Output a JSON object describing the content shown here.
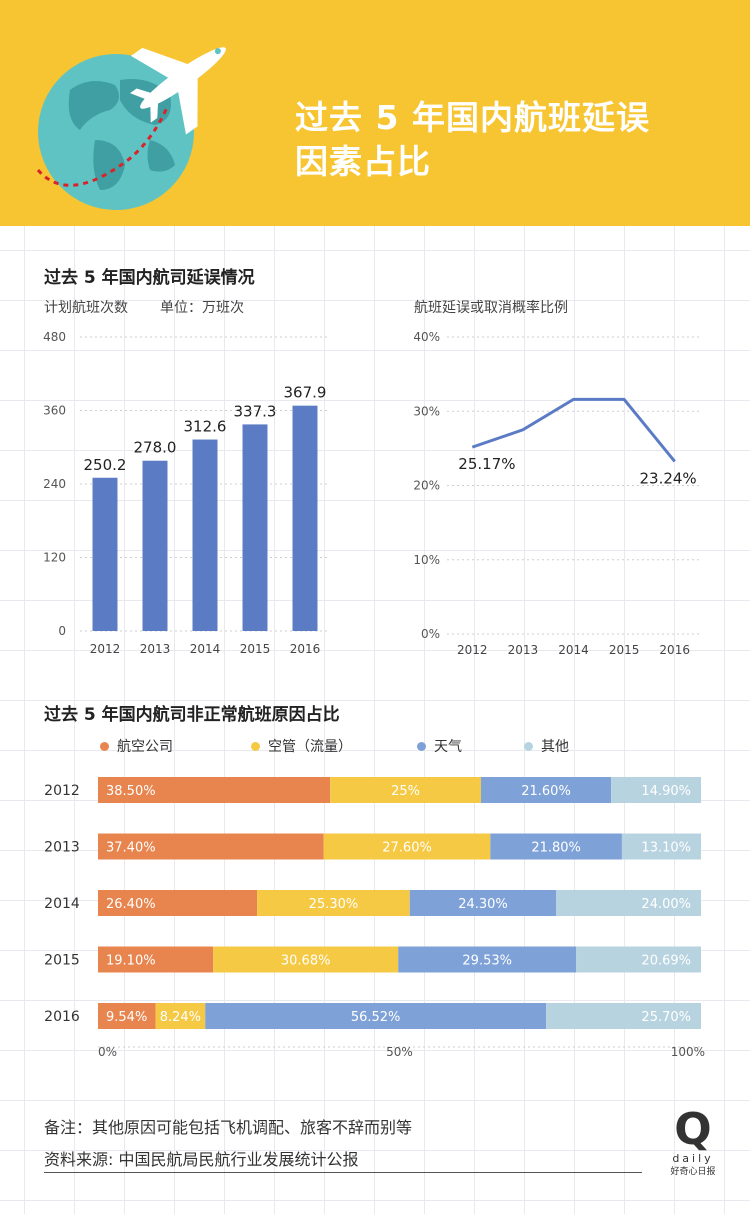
{
  "header": {
    "title_line1": "过去 5 年国内航班延误",
    "title_line2": "因素占比"
  },
  "section1": {
    "title": "过去 5 年国内航司延误情况"
  },
  "section2": {
    "title": "过去 5 年国内航司非正常航班原因占比"
  },
  "notes": {
    "note": "备注：其他原因可能包括飞机调配、旅客不辞而别等",
    "source": "资料来源: 中国民航局民航行业发展统计公报"
  },
  "logo": {
    "letter": "Q",
    "word": "daily",
    "caption": "好奇心日报"
  },
  "colors": {
    "bar": "#5b7cc4",
    "line": "#5b7cc4",
    "airline": "#e8844e",
    "atc": "#f6c944",
    "weather": "#7ea2d8",
    "other": "#b8d3e0",
    "header": "#f7c531"
  },
  "chart_data": [
    {
      "type": "bar",
      "title": "",
      "ylabel": "计划航班次数",
      "unit": "单位：万班次",
      "categories": [
        "2012",
        "2013",
        "2014",
        "2015",
        "2016"
      ],
      "values": [
        250.2,
        278.0,
        312.6,
        337.3,
        367.9
      ],
      "value_labels": [
        "250.2",
        "278.0",
        "312.6",
        "337.3",
        "367.9"
      ],
      "ylim": [
        0,
        480
      ],
      "yticks": [
        "0",
        "120",
        "240",
        "360",
        "480"
      ],
      "grid": true
    },
    {
      "type": "line",
      "ylabel": "航班延误或取消概率比例",
      "categories": [
        "2012",
        "2013",
        "2014",
        "2015",
        "2016"
      ],
      "values": [
        25.17,
        27.5,
        31.6,
        31.6,
        23.24
      ],
      "annotations": [
        {
          "category": "2012",
          "text": "25.17%"
        },
        {
          "category": "2016",
          "text": "23.24%"
        }
      ],
      "ylim": [
        0,
        40
      ],
      "yticks": [
        "0%",
        "10%",
        "20%",
        "30%",
        "40%"
      ],
      "grid": true
    },
    {
      "type": "bar",
      "orientation": "horizontal-stacked-100",
      "categories": [
        "2012",
        "2013",
        "2014",
        "2015",
        "2016"
      ],
      "series": [
        {
          "name": "航空公司",
          "values": [
            38.5,
            37.4,
            26.4,
            19.1,
            9.54
          ],
          "labels": [
            "38.50%",
            "37.40%",
            "26.40%",
            "19.10%",
            "9.54%"
          ]
        },
        {
          "name": "空管（流量）",
          "values": [
            25,
            27.6,
            25.3,
            30.68,
            8.24
          ],
          "labels": [
            "25%",
            "27.60%",
            "25.30%",
            "30.68%",
            "8.24%"
          ]
        },
        {
          "name": "天气",
          "values": [
            21.6,
            21.8,
            24.3,
            29.53,
            56.52
          ],
          "labels": [
            "21.60%",
            "21.80%",
            "24.30%",
            "29.53%",
            "56.52%"
          ]
        },
        {
          "name": "其他",
          "values": [
            14.9,
            13.1,
            24.0,
            20.69,
            25.7
          ],
          "labels": [
            "14.90%",
            "13.10%",
            "24.00%",
            "20.69%",
            "25.70%"
          ]
        }
      ],
      "xticks": [
        "0%",
        "50%",
        "100%"
      ],
      "legend": "top"
    }
  ]
}
